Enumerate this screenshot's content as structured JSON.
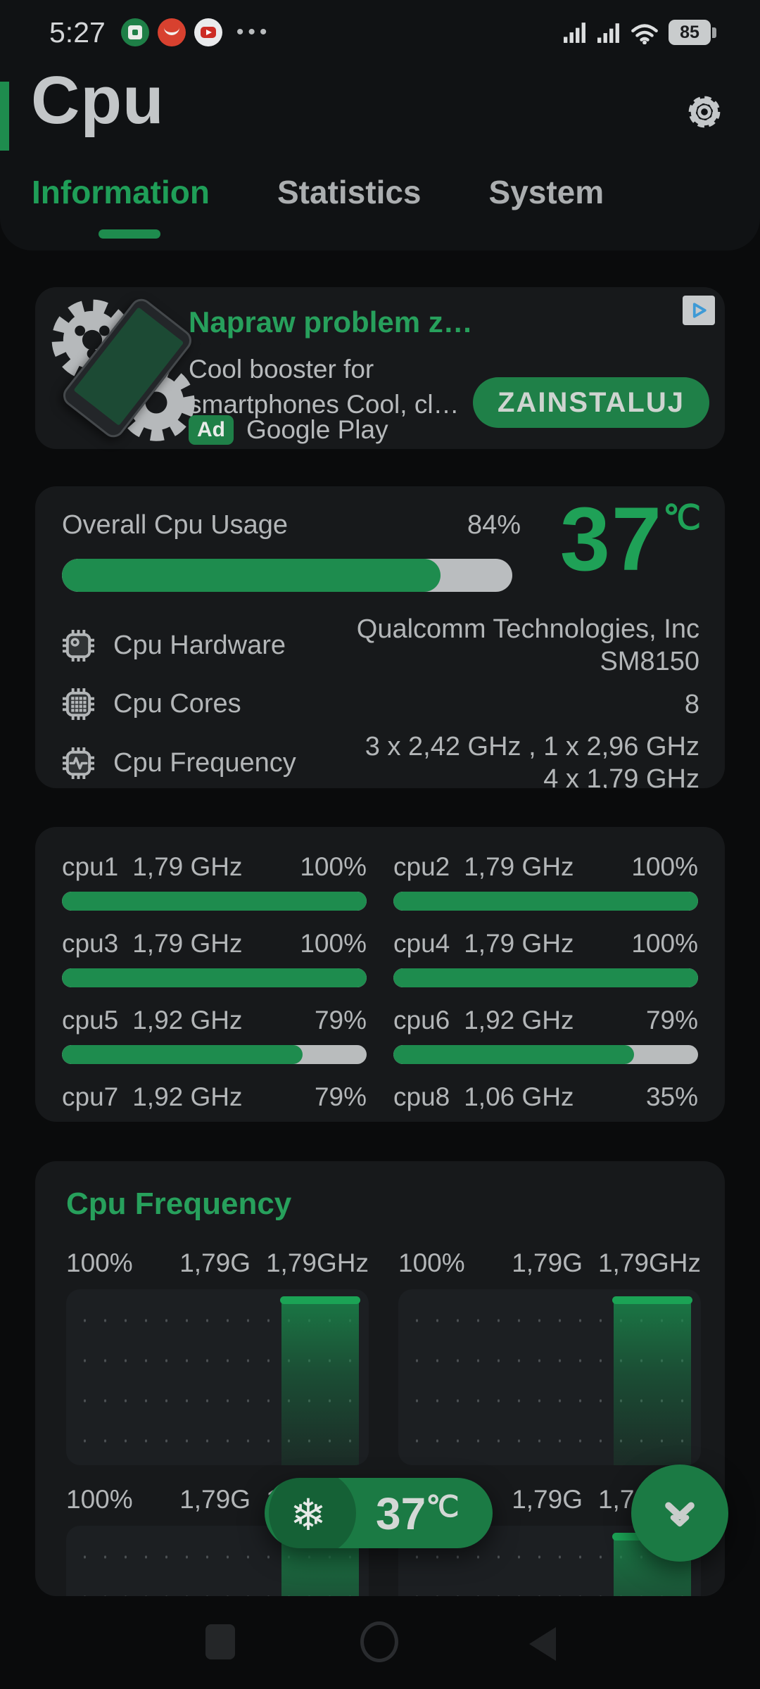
{
  "colors": {
    "accent_green": "#1f9e58",
    "bar_green": "#1e8c4e",
    "button_green": "#1f8048",
    "pill_green": "#1b7a44",
    "card_bg": "#17191b",
    "page_bg": "#0a0b0c",
    "text_gray": "#b3b6b8"
  },
  "status_bar": {
    "time": "5:27",
    "notification_icons": [
      "cpu-app-icon",
      "aliexpress-icon",
      "youtube-icon"
    ],
    "more_icon": "•••",
    "battery_level": "85"
  },
  "header": {
    "title": "Cpu",
    "settings_icon": "gear-icon",
    "tabs": [
      {
        "label": "Information",
        "active": true
      },
      {
        "label": "Statistics",
        "active": false
      },
      {
        "label": "System",
        "active": false
      }
    ]
  },
  "ad": {
    "title": "Napraw problem z…",
    "description_line1": "Cool booster for",
    "description_line2": "smartphones Cool, cl…",
    "badge": "Ad",
    "source": "Google Play",
    "cta": "ZAINSTALUJ",
    "adchoices_icon": "adchoices-icon"
  },
  "overview": {
    "usage_label": "Overall Cpu Usage",
    "usage_percent": 84,
    "usage_percent_label": "84%",
    "temperature": "37",
    "temperature_unit": "℃",
    "rows": [
      {
        "icon": "chip-circle-icon",
        "label": "Cpu Hardware",
        "line1": "Qualcomm Technologies, Inc",
        "line2": "SM8150"
      },
      {
        "icon": "chip-grid-icon",
        "label": "Cpu Cores",
        "line1": "8",
        "line2": ""
      },
      {
        "icon": "chip-pulse-icon",
        "label": "Cpu Frequency",
        "line1": "3 x 2,42 GHz , 1 x 2,96 GHz",
        "line2": "4 x 1,79 GHz"
      }
    ]
  },
  "cores": [
    {
      "name": "cpu1",
      "freq": "1,79 GHz",
      "percent": 100,
      "percent_label": "100%"
    },
    {
      "name": "cpu2",
      "freq": "1,79 GHz",
      "percent": 100,
      "percent_label": "100%"
    },
    {
      "name": "cpu3",
      "freq": "1,79 GHz",
      "percent": 100,
      "percent_label": "100%"
    },
    {
      "name": "cpu4",
      "freq": "1,79 GHz",
      "percent": 100,
      "percent_label": "100%"
    },
    {
      "name": "cpu5",
      "freq": "1,92 GHz",
      "percent": 79,
      "percent_label": "79%"
    },
    {
      "name": "cpu6",
      "freq": "1,92 GHz",
      "percent": 79,
      "percent_label": "79%"
    },
    {
      "name": "cpu7",
      "freq": "1,92 GHz",
      "percent": 79,
      "percent_label": "79%"
    },
    {
      "name": "cpu8",
      "freq": "1,06 GHz",
      "percent": 35,
      "percent_label": "35%"
    }
  ],
  "frequency_card": {
    "title": "Cpu Frequency",
    "graphs": [
      {
        "percent_label": "100%",
        "current": "1,79G",
        "max": "1,79GHz",
        "shape": "flat-at-max-last-quarter"
      },
      {
        "percent_label": "100%",
        "current": "1,79G",
        "max": "1,79GHz",
        "shape": "flat-at-max-last-quarter"
      },
      {
        "percent_label": "100%",
        "current": "1,79G",
        "max": "1,79GHz",
        "shape": "flat-at-max-last-quarter"
      },
      {
        "percent_label": "100%",
        "current": "1,79G",
        "max": "1,79GHz",
        "shape": "flat-at-max-last-quarter"
      }
    ]
  },
  "floating": {
    "cooler_icon": "snowflake-icon",
    "temperature": "37",
    "unit": "℃",
    "fab_icon": "double-chevron-down-icon"
  },
  "nav": {
    "buttons": [
      "recents",
      "home",
      "back"
    ]
  }
}
